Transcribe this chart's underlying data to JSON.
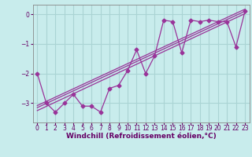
{
  "xlabel": "Windchill (Refroidissement éolien,°C)",
  "background_color": "#c8ecec",
  "grid_color": "#aad4d4",
  "line_color": "#993399",
  "x_data": [
    0,
    1,
    2,
    3,
    4,
    5,
    6,
    7,
    8,
    9,
    10,
    11,
    12,
    13,
    14,
    15,
    16,
    17,
    18,
    19,
    20,
    21,
    22,
    23
  ],
  "y_data": [
    -2.0,
    -3.0,
    -3.3,
    -3.0,
    -2.7,
    -3.1,
    -3.1,
    -3.3,
    -2.5,
    -2.4,
    -1.9,
    -1.2,
    -2.0,
    -1.4,
    -0.2,
    -0.25,
    -1.3,
    -0.2,
    -0.25,
    -0.2,
    -0.25,
    -0.25,
    -1.1,
    0.1
  ],
  "reg_lines": [
    [
      -3.25,
      0.02
    ],
    [
      -3.15,
      0.1
    ],
    [
      -3.08,
      0.17
    ]
  ],
  "xlim": [
    -0.5,
    23.5
  ],
  "ylim": [
    -3.65,
    0.32
  ],
  "yticks": [
    0,
    -1,
    -2,
    -3
  ],
  "xticks": [
    0,
    1,
    2,
    3,
    4,
    5,
    6,
    7,
    8,
    9,
    10,
    11,
    12,
    13,
    14,
    15,
    16,
    17,
    18,
    19,
    20,
    21,
    22,
    23
  ],
  "tick_color": "#660066",
  "label_fontsize": 5.5,
  "xlabel_fontsize": 6.5
}
